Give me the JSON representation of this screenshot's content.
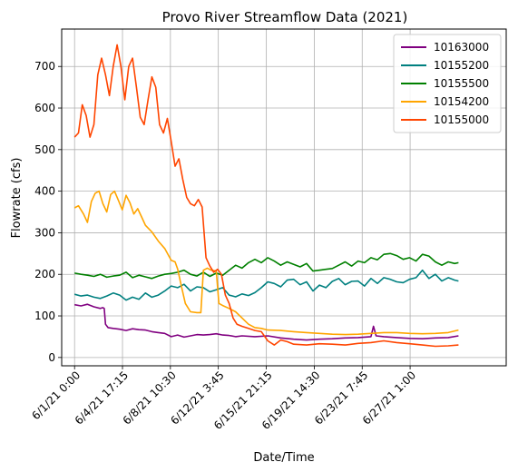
{
  "chart_data": {
    "type": "line",
    "title": "Provo River Streamflow Data (2021)",
    "xlabel": "Date/Time",
    "ylabel": "Flowrate (cfs)",
    "x_range_days": [
      -1.0,
      33.5
    ],
    "ylim": [
      -20,
      790
    ],
    "grid": true,
    "legend_position": "top-right",
    "x_ticks": [
      {
        "day": 0,
        "label": "6/1/21 0:00"
      },
      {
        "day": 3.71875,
        "label": "6/4/21 17:15"
      },
      {
        "day": 7.4375,
        "label": "6/8/21 10:30"
      },
      {
        "day": 11.15625,
        "label": "6/12/21 3:45"
      },
      {
        "day": 14.885,
        "label": "6/15/21 21:15"
      },
      {
        "day": 18.604,
        "label": "6/19/21 14:30"
      },
      {
        "day": 22.323,
        "label": "6/23/21 7:45"
      },
      {
        "day": 26.042,
        "label": "6/27/21 1:00"
      }
    ],
    "y_ticks": [
      0,
      100,
      200,
      300,
      400,
      500,
      600,
      700
    ],
    "series": [
      {
        "name": "10163000",
        "color": "#800080",
        "points": [
          [
            0,
            127
          ],
          [
            0.5,
            124
          ],
          [
            1,
            128
          ],
          [
            1.5,
            122
          ],
          [
            2,
            118
          ],
          [
            2.2,
            120
          ],
          [
            2.3,
            118
          ],
          [
            2.4,
            80
          ],
          [
            2.6,
            72
          ],
          [
            3,
            70
          ],
          [
            3.5,
            68
          ],
          [
            4,
            65
          ],
          [
            4.5,
            69
          ],
          [
            5,
            67
          ],
          [
            5.5,
            66
          ],
          [
            6,
            62
          ],
          [
            6.5,
            60
          ],
          [
            7,
            58
          ],
          [
            7.5,
            50
          ],
          [
            8,
            54
          ],
          [
            8.5,
            49
          ],
          [
            9,
            52
          ],
          [
            9.5,
            55
          ],
          [
            10,
            54
          ],
          [
            10.5,
            55
          ],
          [
            11,
            57
          ],
          [
            11.5,
            54
          ],
          [
            12,
            53
          ],
          [
            12.5,
            50
          ],
          [
            13,
            52
          ],
          [
            14,
            50
          ],
          [
            15,
            52
          ],
          [
            16,
            47
          ],
          [
            17,
            44
          ],
          [
            18,
            42
          ],
          [
            19,
            44
          ],
          [
            20,
            45
          ],
          [
            21,
            47
          ],
          [
            22,
            48
          ],
          [
            23,
            50
          ],
          [
            23.2,
            75
          ],
          [
            23.4,
            52
          ],
          [
            24,
            50
          ],
          [
            25,
            48
          ],
          [
            26,
            46
          ],
          [
            27,
            45
          ],
          [
            28,
            47
          ],
          [
            29,
            48
          ],
          [
            29.8,
            52
          ]
        ]
      },
      {
        "name": "10155200",
        "color": "#008080",
        "points": [
          [
            0,
            152
          ],
          [
            0.5,
            148
          ],
          [
            1,
            150
          ],
          [
            1.5,
            145
          ],
          [
            2,
            142
          ],
          [
            2.5,
            148
          ],
          [
            3,
            155
          ],
          [
            3.5,
            150
          ],
          [
            4,
            138
          ],
          [
            4.5,
            145
          ],
          [
            5,
            140
          ],
          [
            5.5,
            155
          ],
          [
            6,
            145
          ],
          [
            6.5,
            150
          ],
          [
            7,
            160
          ],
          [
            7.5,
            172
          ],
          [
            8,
            168
          ],
          [
            8.5,
            176
          ],
          [
            9,
            160
          ],
          [
            9.5,
            170
          ],
          [
            10,
            168
          ],
          [
            10.5,
            158
          ],
          [
            11,
            163
          ],
          [
            11.5,
            168
          ],
          [
            12,
            150
          ],
          [
            12.5,
            146
          ],
          [
            13,
            153
          ],
          [
            13.5,
            149
          ],
          [
            14,
            156
          ],
          [
            14.5,
            168
          ],
          [
            15,
            182
          ],
          [
            15.5,
            178
          ],
          [
            16,
            170
          ],
          [
            16.5,
            186
          ],
          [
            17,
            188
          ],
          [
            17.5,
            175
          ],
          [
            18,
            182
          ],
          [
            18.5,
            160
          ],
          [
            19,
            174
          ],
          [
            19.5,
            168
          ],
          [
            20,
            183
          ],
          [
            20.5,
            190
          ],
          [
            21,
            175
          ],
          [
            21.5,
            183
          ],
          [
            22,
            184
          ],
          [
            22.5,
            172
          ],
          [
            23,
            190
          ],
          [
            23.5,
            178
          ],
          [
            24,
            192
          ],
          [
            24.5,
            188
          ],
          [
            25,
            182
          ],
          [
            25.5,
            180
          ],
          [
            26,
            188
          ],
          [
            26.5,
            192
          ],
          [
            27,
            210
          ],
          [
            27.5,
            190
          ],
          [
            28,
            200
          ],
          [
            28.5,
            184
          ],
          [
            29,
            192
          ],
          [
            29.5,
            186
          ],
          [
            29.8,
            184
          ]
        ]
      },
      {
        "name": "10155500",
        "color": "#008000",
        "points": [
          [
            0,
            203
          ],
          [
            0.5,
            200
          ],
          [
            1,
            198
          ],
          [
            1.5,
            195
          ],
          [
            2,
            200
          ],
          [
            2.5,
            193
          ],
          [
            3,
            196
          ],
          [
            3.5,
            198
          ],
          [
            4,
            205
          ],
          [
            4.5,
            192
          ],
          [
            5,
            198
          ],
          [
            5.5,
            194
          ],
          [
            6,
            190
          ],
          [
            6.5,
            196
          ],
          [
            7,
            200
          ],
          [
            7.5,
            202
          ],
          [
            8,
            205
          ],
          [
            8.5,
            210
          ],
          [
            9,
            200
          ],
          [
            9.5,
            196
          ],
          [
            10,
            205
          ],
          [
            10.5,
            195
          ],
          [
            11,
            203
          ],
          [
            11.5,
            198
          ],
          [
            12,
            210
          ],
          [
            12.5,
            222
          ],
          [
            13,
            215
          ],
          [
            13.5,
            228
          ],
          [
            14,
            236
          ],
          [
            14.5,
            228
          ],
          [
            15,
            240
          ],
          [
            15.5,
            232
          ],
          [
            16,
            222
          ],
          [
            16.5,
            230
          ],
          [
            17,
            224
          ],
          [
            17.5,
            218
          ],
          [
            18,
            226
          ],
          [
            18.5,
            208
          ],
          [
            19,
            210
          ],
          [
            19.5,
            212
          ],
          [
            20,
            214
          ],
          [
            20.5,
            222
          ],
          [
            21,
            230
          ],
          [
            21.5,
            220
          ],
          [
            22,
            232
          ],
          [
            22.5,
            228
          ],
          [
            23,
            240
          ],
          [
            23.5,
            235
          ],
          [
            24,
            248
          ],
          [
            24.5,
            250
          ],
          [
            25,
            245
          ],
          [
            25.5,
            236
          ],
          [
            26,
            240
          ],
          [
            26.5,
            232
          ],
          [
            27,
            248
          ],
          [
            27.5,
            244
          ],
          [
            28,
            230
          ],
          [
            28.5,
            222
          ],
          [
            29,
            230
          ],
          [
            29.5,
            226
          ],
          [
            29.8,
            228
          ]
        ]
      },
      {
        "name": "10154200",
        "color": "#FFA500",
        "points": [
          [
            0,
            360
          ],
          [
            0.3,
            365
          ],
          [
            0.7,
            345
          ],
          [
            1,
            325
          ],
          [
            1.3,
            375
          ],
          [
            1.6,
            395
          ],
          [
            1.9,
            400
          ],
          [
            2.2,
            370
          ],
          [
            2.5,
            350
          ],
          [
            2.8,
            392
          ],
          [
            3.1,
            400
          ],
          [
            3.4,
            378
          ],
          [
            3.7,
            355
          ],
          [
            4,
            390
          ],
          [
            4.3,
            372
          ],
          [
            4.6,
            345
          ],
          [
            4.9,
            358
          ],
          [
            5.2,
            338
          ],
          [
            5.5,
            318
          ],
          [
            6,
            302
          ],
          [
            6.5,
            280
          ],
          [
            7,
            262
          ],
          [
            7.5,
            234
          ],
          [
            7.8,
            230
          ],
          [
            8,
            213
          ],
          [
            8.3,
            170
          ],
          [
            8.6,
            130
          ],
          [
            9,
            110
          ],
          [
            9.5,
            108
          ],
          [
            9.8,
            108
          ],
          [
            10,
            210
          ],
          [
            10.3,
            215
          ],
          [
            10.6,
            210
          ],
          [
            11,
            208
          ],
          [
            11.2,
            130
          ],
          [
            11.5,
            125
          ],
          [
            12,
            118
          ],
          [
            12.5,
            110
          ],
          [
            13,
            95
          ],
          [
            13.5,
            80
          ],
          [
            14,
            72
          ],
          [
            14.5,
            70
          ],
          [
            15,
            66
          ],
          [
            16,
            65
          ],
          [
            17,
            62
          ],
          [
            18,
            60
          ],
          [
            19,
            58
          ],
          [
            20,
            56
          ],
          [
            21,
            55
          ],
          [
            22,
            56
          ],
          [
            23,
            58
          ],
          [
            24,
            60
          ],
          [
            25,
            60
          ],
          [
            26,
            58
          ],
          [
            27,
            57
          ],
          [
            28,
            58
          ],
          [
            29,
            60
          ],
          [
            29.8,
            66
          ]
        ]
      },
      {
        "name": "10155000",
        "color": "#FF4500",
        "points": [
          [
            0,
            530
          ],
          [
            0.3,
            540
          ],
          [
            0.6,
            608
          ],
          [
            0.9,
            582
          ],
          [
            1.2,
            530
          ],
          [
            1.5,
            560
          ],
          [
            1.8,
            680
          ],
          [
            2.1,
            720
          ],
          [
            2.4,
            680
          ],
          [
            2.7,
            630
          ],
          [
            3,
            700
          ],
          [
            3.3,
            752
          ],
          [
            3.6,
            700
          ],
          [
            3.9,
            620
          ],
          [
            4.2,
            700
          ],
          [
            4.5,
            720
          ],
          [
            4.8,
            650
          ],
          [
            5.1,
            578
          ],
          [
            5.4,
            560
          ],
          [
            5.7,
            620
          ],
          [
            6,
            675
          ],
          [
            6.3,
            650
          ],
          [
            6.6,
            560
          ],
          [
            6.9,
            540
          ],
          [
            7.2,
            575
          ],
          [
            7.5,
            520
          ],
          [
            7.8,
            460
          ],
          [
            8.1,
            478
          ],
          [
            8.4,
            428
          ],
          [
            8.7,
            385
          ],
          [
            9,
            370
          ],
          [
            9.3,
            365
          ],
          [
            9.6,
            380
          ],
          [
            9.9,
            362
          ],
          [
            10.2,
            240
          ],
          [
            10.5,
            220
          ],
          [
            10.8,
            205
          ],
          [
            11.1,
            212
          ],
          [
            11.4,
            200
          ],
          [
            11.7,
            150
          ],
          [
            12,
            130
          ],
          [
            12.3,
            95
          ],
          [
            12.6,
            80
          ],
          [
            13,
            75
          ],
          [
            13.5,
            70
          ],
          [
            14,
            65
          ],
          [
            14.5,
            62
          ],
          [
            15,
            40
          ],
          [
            15.5,
            30
          ],
          [
            16,
            42
          ],
          [
            16.5,
            38
          ],
          [
            17,
            32
          ],
          [
            18,
            30
          ],
          [
            19,
            33
          ],
          [
            20,
            32
          ],
          [
            21,
            30
          ],
          [
            22,
            34
          ],
          [
            23,
            36
          ],
          [
            24,
            40
          ],
          [
            25,
            36
          ],
          [
            26,
            33
          ],
          [
            27,
            30
          ],
          [
            28,
            27
          ],
          [
            29,
            28
          ],
          [
            29.8,
            30
          ]
        ]
      }
    ]
  }
}
